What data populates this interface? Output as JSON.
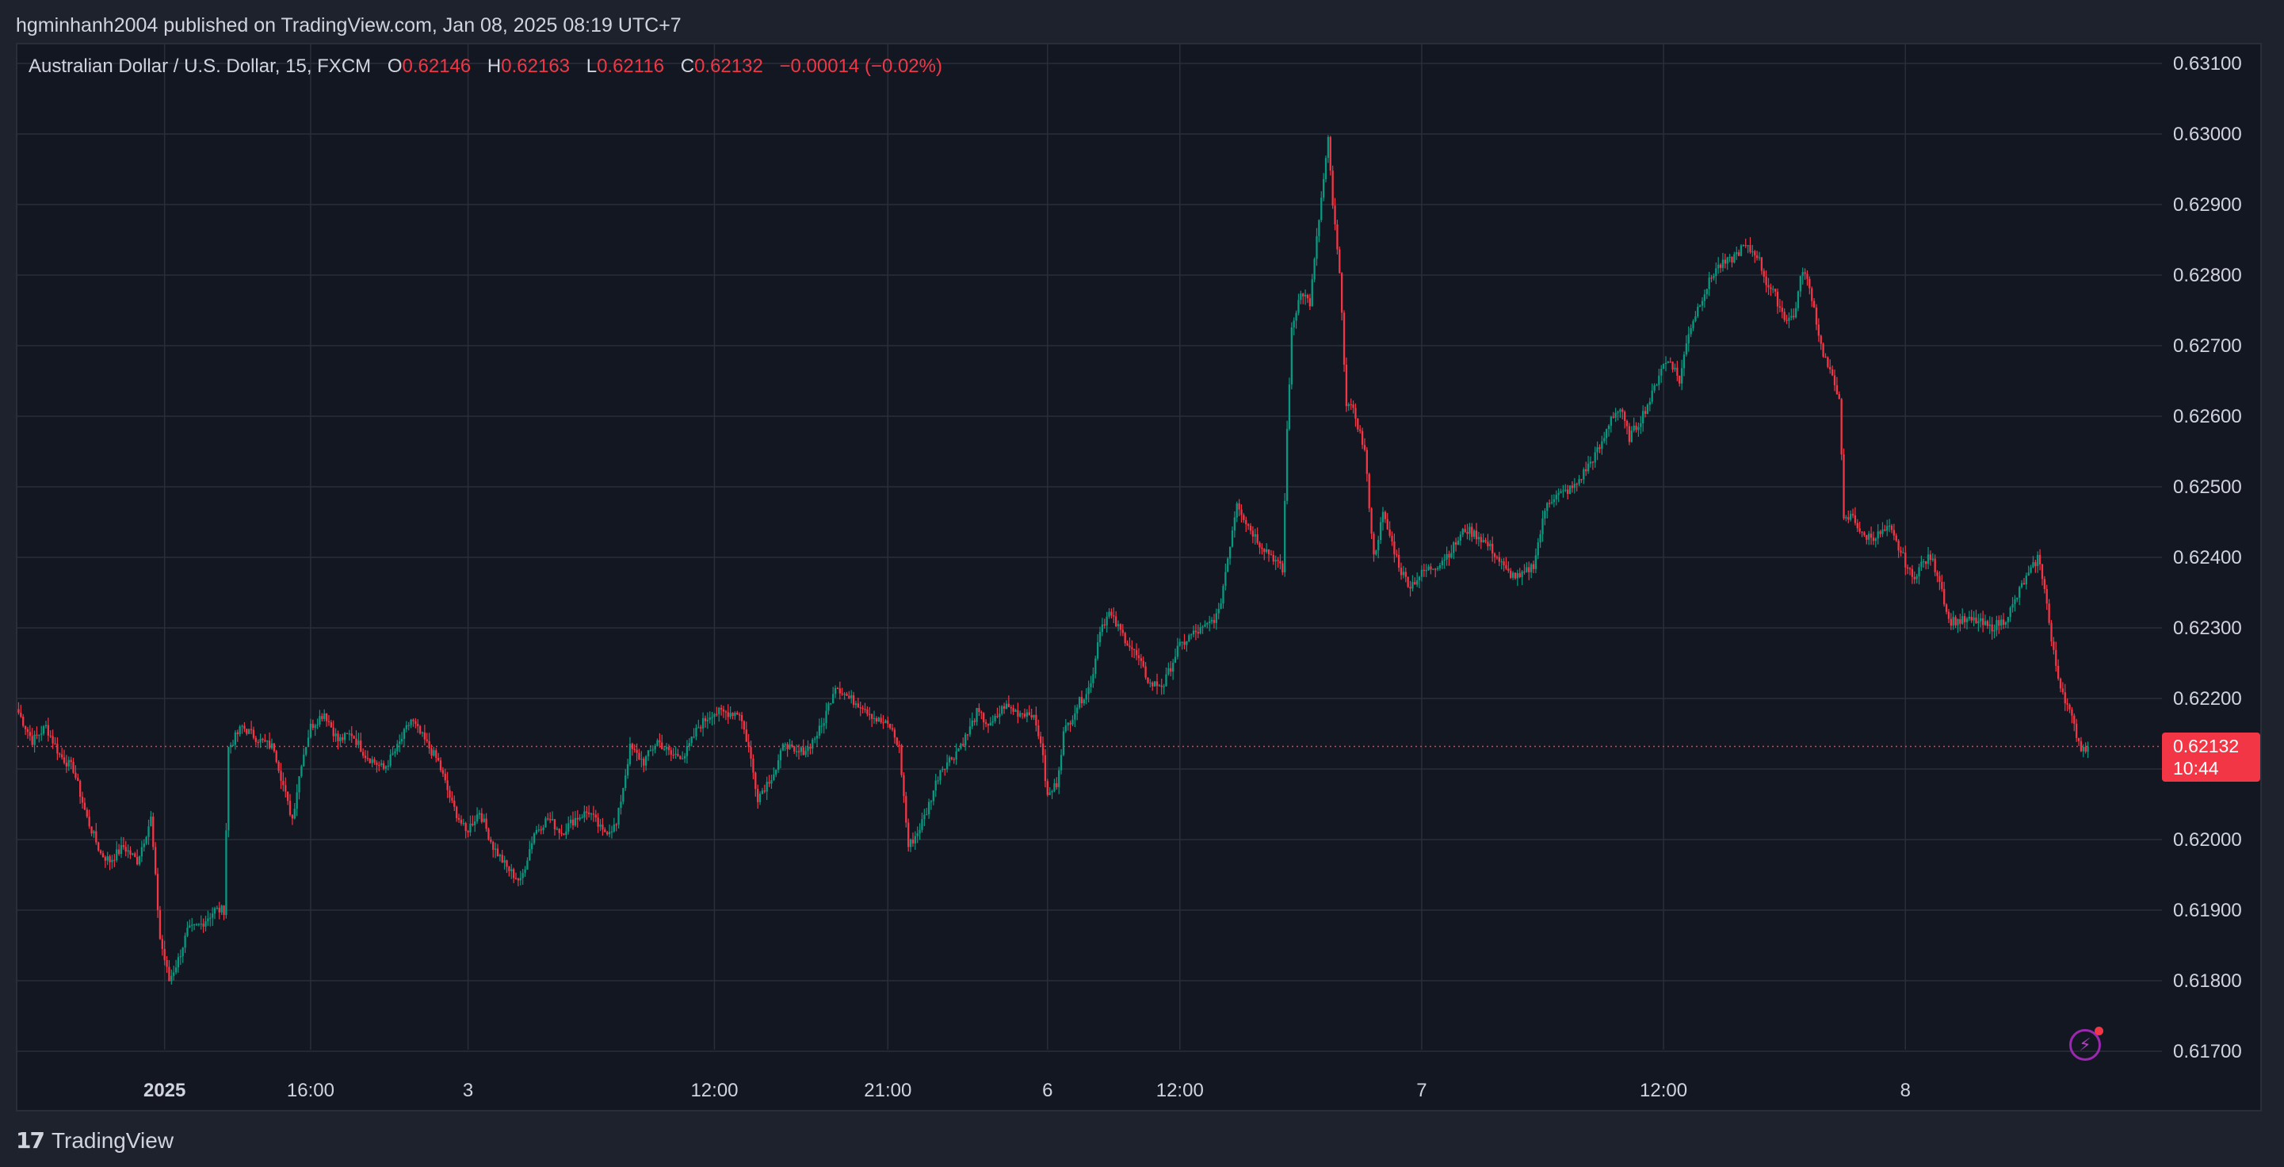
{
  "header": {
    "published": "hgminhanh2004 published on TradingView.com, Jan 08, 2025 08:19 UTC+7"
  },
  "legend": {
    "symbol": "Australian Dollar / U.S. Dollar, 15, FXCM",
    "o_label": "O",
    "o_value": "0.62146",
    "h_label": "H",
    "h_value": "0.62163",
    "l_label": "L",
    "l_value": "0.62116",
    "c_label": "C",
    "c_value": "0.62132",
    "change": "−0.00014 (−0.02%)"
  },
  "last_price": {
    "price": "0.62132",
    "countdown": "10:44"
  },
  "footer": {
    "brand": "TradingView"
  },
  "colors": {
    "background": "#131722",
    "frame": "#1e222d",
    "grid": "#2a2e39",
    "up": "#089981",
    "down": "#f23645",
    "text": "#d1d4dc",
    "price_line": "#f23645"
  },
  "icons": {
    "logo": "tradingview-logo-icon",
    "bolt": "lightning-icon"
  },
  "chart_data": {
    "type": "candlestick",
    "title": "Australian Dollar / U.S. Dollar, 15, FXCM",
    "grid": true,
    "y_axis_position": "right",
    "ylim": [
      0.6169,
      0.6312
    ],
    "y_ticks": [
      "0.63100",
      "0.63000",
      "0.62900",
      "0.62800",
      "0.62700",
      "0.62600",
      "0.62500",
      "0.62400",
      "0.62300",
      "0.62200",
      "0.62100",
      "0.62000",
      "0.61900",
      "0.61800",
      "0.61700"
    ],
    "x_ticks": [
      {
        "label": "2025",
        "bar": 64,
        "bold": true
      },
      {
        "label": "16:00",
        "bar": 128
      },
      {
        "label": "3",
        "bar": 197
      },
      {
        "label": "12:00",
        "bar": 305
      },
      {
        "label": "21:00",
        "bar": 381
      },
      {
        "label": "6",
        "bar": 451
      },
      {
        "label": "12:00",
        "bar": 509
      },
      {
        "label": "7",
        "bar": 615
      },
      {
        "label": "12:00",
        "bar": 721
      },
      {
        "label": "8",
        "bar": 827
      }
    ],
    "n_bars": 908,
    "price_points": [
      [
        0,
        0.6218
      ],
      [
        6,
        0.6214
      ],
      [
        12,
        0.6216
      ],
      [
        18,
        0.6212
      ],
      [
        24,
        0.621
      ],
      [
        30,
        0.6203
      ],
      [
        36,
        0.6198
      ],
      [
        40,
        0.6197
      ],
      [
        46,
        0.6199
      ],
      [
        52,
        0.6197
      ],
      [
        58,
        0.6203
      ],
      [
        62,
        0.6186
      ],
      [
        66,
        0.618
      ],
      [
        70,
        0.6183
      ],
      [
        74,
        0.6187
      ],
      [
        80,
        0.6188
      ],
      [
        86,
        0.619
      ],
      [
        90,
        0.619
      ],
      [
        92,
        0.6213
      ],
      [
        98,
        0.6216
      ],
      [
        106,
        0.6214
      ],
      [
        112,
        0.6213
      ],
      [
        118,
        0.6205
      ],
      [
        120,
        0.6203
      ],
      [
        124,
        0.6211
      ],
      [
        128,
        0.6216
      ],
      [
        134,
        0.6218
      ],
      [
        140,
        0.6214
      ],
      [
        146,
        0.6215
      ],
      [
        152,
        0.6212
      ],
      [
        160,
        0.621
      ],
      [
        166,
        0.6213
      ],
      [
        172,
        0.6217
      ],
      [
        178,
        0.6214
      ],
      [
        184,
        0.6211
      ],
      [
        190,
        0.6205
      ],
      [
        196,
        0.6201
      ],
      [
        202,
        0.6204
      ],
      [
        208,
        0.6199
      ],
      [
        214,
        0.6196
      ],
      [
        220,
        0.6194
      ],
      [
        226,
        0.6201
      ],
      [
        232,
        0.6203
      ],
      [
        238,
        0.6201
      ],
      [
        244,
        0.6203
      ],
      [
        250,
        0.6204
      ],
      [
        256,
        0.6201
      ],
      [
        262,
        0.6202
      ],
      [
        268,
        0.6213
      ],
      [
        274,
        0.6211
      ],
      [
        280,
        0.6214
      ],
      [
        286,
        0.6212
      ],
      [
        292,
        0.6212
      ],
      [
        298,
        0.6216
      ],
      [
        304,
        0.6218
      ],
      [
        310,
        0.6218
      ],
      [
        316,
        0.6218
      ],
      [
        320,
        0.6213
      ],
      [
        324,
        0.6206
      ],
      [
        328,
        0.6208
      ],
      [
        332,
        0.621
      ],
      [
        336,
        0.6214
      ],
      [
        340,
        0.6212
      ],
      [
        346,
        0.6213
      ],
      [
        352,
        0.6216
      ],
      [
        358,
        0.6222
      ],
      [
        364,
        0.622
      ],
      [
        370,
        0.6219
      ],
      [
        376,
        0.6217
      ],
      [
        382,
        0.6216
      ],
      [
        386,
        0.6213
      ],
      [
        390,
        0.6199
      ],
      [
        394,
        0.6201
      ],
      [
        398,
        0.6204
      ],
      [
        404,
        0.621
      ],
      [
        410,
        0.6212
      ],
      [
        416,
        0.6215
      ],
      [
        420,
        0.6218
      ],
      [
        426,
        0.6216
      ],
      [
        432,
        0.6219
      ],
      [
        438,
        0.6218
      ],
      [
        444,
        0.6218
      ],
      [
        448,
        0.6214
      ],
      [
        451,
        0.6206
      ],
      [
        455,
        0.6208
      ],
      [
        458,
        0.6215
      ],
      [
        464,
        0.6219
      ],
      [
        470,
        0.6222
      ],
      [
        474,
        0.623
      ],
      [
        478,
        0.6232
      ],
      [
        484,
        0.6229
      ],
      [
        490,
        0.6226
      ],
      [
        496,
        0.6222
      ],
      [
        502,
        0.6222
      ],
      [
        508,
        0.6227
      ],
      [
        514,
        0.6229
      ],
      [
        520,
        0.623
      ],
      [
        526,
        0.6232
      ],
      [
        530,
        0.624
      ],
      [
        534,
        0.6248
      ],
      [
        538,
        0.6245
      ],
      [
        544,
        0.6242
      ],
      [
        550,
        0.624
      ],
      [
        554,
        0.6238
      ],
      [
        556,
        0.6258
      ],
      [
        558,
        0.6272
      ],
      [
        562,
        0.6278
      ],
      [
        566,
        0.6276
      ],
      [
        570,
        0.6288
      ],
      [
        574,
        0.6299
      ],
      [
        576,
        0.629
      ],
      [
        579,
        0.628
      ],
      [
        582,
        0.6262
      ],
      [
        586,
        0.626
      ],
      [
        590,
        0.6255
      ],
      [
        594,
        0.624
      ],
      [
        598,
        0.6246
      ],
      [
        602,
        0.6242
      ],
      [
        606,
        0.6238
      ],
      [
        610,
        0.6236
      ],
      [
        616,
        0.6238
      ],
      [
        622,
        0.6239
      ],
      [
        628,
        0.6241
      ],
      [
        634,
        0.6244
      ],
      [
        640,
        0.6243
      ],
      [
        646,
        0.6241
      ],
      [
        652,
        0.6238
      ],
      [
        658,
        0.6237
      ],
      [
        664,
        0.6239
      ],
      [
        670,
        0.6248
      ],
      [
        676,
        0.6249
      ],
      [
        682,
        0.625
      ],
      [
        688,
        0.6253
      ],
      [
        694,
        0.6256
      ],
      [
        698,
        0.626
      ],
      [
        702,
        0.6261
      ],
      [
        706,
        0.6257
      ],
      [
        710,
        0.6259
      ],
      [
        716,
        0.6263
      ],
      [
        720,
        0.6267
      ],
      [
        724,
        0.6268
      ],
      [
        728,
        0.6265
      ],
      [
        732,
        0.6272
      ],
      [
        738,
        0.6277
      ],
      [
        744,
        0.6281
      ],
      [
        750,
        0.6282
      ],
      [
        756,
        0.6284
      ],
      [
        762,
        0.6283
      ],
      [
        766,
        0.6279
      ],
      [
        770,
        0.6277
      ],
      [
        774,
        0.6274
      ],
      [
        778,
        0.6274
      ],
      [
        782,
        0.6281
      ],
      [
        786,
        0.6277
      ],
      [
        790,
        0.627
      ],
      [
        794,
        0.6266
      ],
      [
        798,
        0.6263
      ],
      [
        800,
        0.6245
      ],
      [
        804,
        0.6246
      ],
      [
        808,
        0.6243
      ],
      [
        814,
        0.6243
      ],
      [
        820,
        0.6244
      ],
      [
        826,
        0.624
      ],
      [
        830,
        0.6237
      ],
      [
        834,
        0.6239
      ],
      [
        838,
        0.624
      ],
      [
        842,
        0.6237
      ],
      [
        846,
        0.6231
      ],
      [
        852,
        0.6231
      ],
      [
        858,
        0.6231
      ],
      [
        864,
        0.623
      ],
      [
        870,
        0.6231
      ],
      [
        874,
        0.6233
      ],
      [
        878,
        0.6236
      ],
      [
        882,
        0.6238
      ],
      [
        885,
        0.624
      ],
      [
        888,
        0.6236
      ],
      [
        891,
        0.6228
      ],
      [
        894,
        0.6223
      ],
      [
        897,
        0.622
      ],
      [
        900,
        0.6217
      ],
      [
        904,
        0.6213
      ],
      [
        906,
        0.6213
      ]
    ],
    "last_close": 0.62132,
    "price_line": 0.62132
  }
}
